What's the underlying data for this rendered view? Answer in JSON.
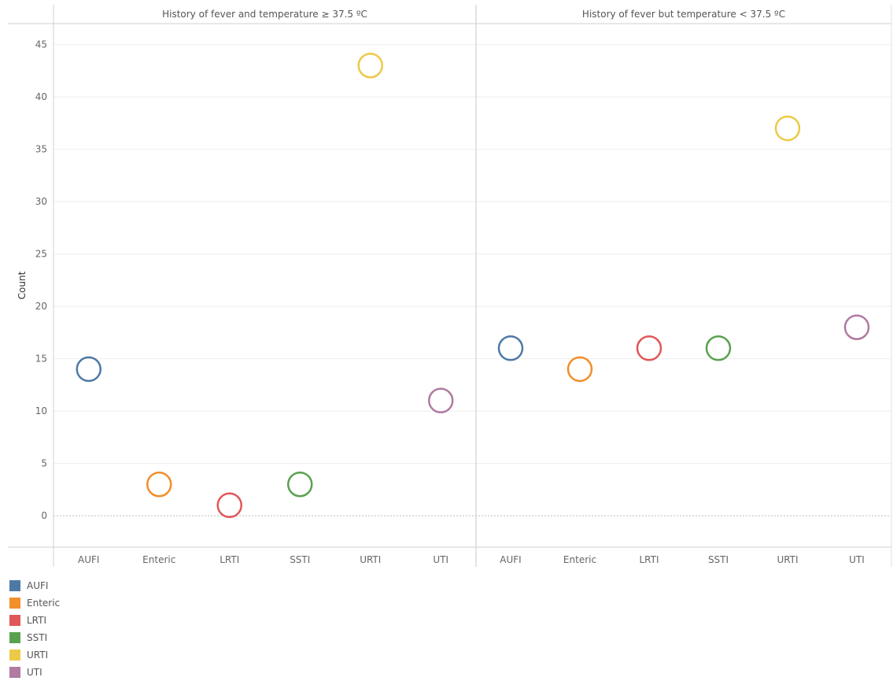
{
  "chart_data": {
    "type": "scatter",
    "ylabel": "Count",
    "ylim": [
      -3,
      47
    ],
    "yticks": [
      0,
      5,
      10,
      15,
      20,
      25,
      30,
      35,
      40,
      45
    ],
    "categories": [
      "AUFI",
      "Enteric",
      "LRTI",
      "SSTI",
      "URTI",
      "UTI"
    ],
    "colors": {
      "AUFI": "#4e79a7",
      "Enteric": "#f28e2b",
      "LRTI": "#e15759",
      "SSTI": "#59a14f",
      "URTI": "#edc948",
      "UTI": "#b07aa1"
    },
    "panels": [
      {
        "title": "History of fever and temperature ≥ 37.5 ºC",
        "values": [
          14,
          3,
          1,
          3,
          43,
          11
        ]
      },
      {
        "title": "History of fever but temperature < 37.5 ºC",
        "values": [
          16,
          14,
          16,
          16,
          37,
          18
        ]
      }
    ],
    "legend": [
      "AUFI",
      "Enteric",
      "LRTI",
      "SSTI",
      "URTI",
      "UTI"
    ],
    "legend_position": "bottom-left",
    "grid": true
  }
}
